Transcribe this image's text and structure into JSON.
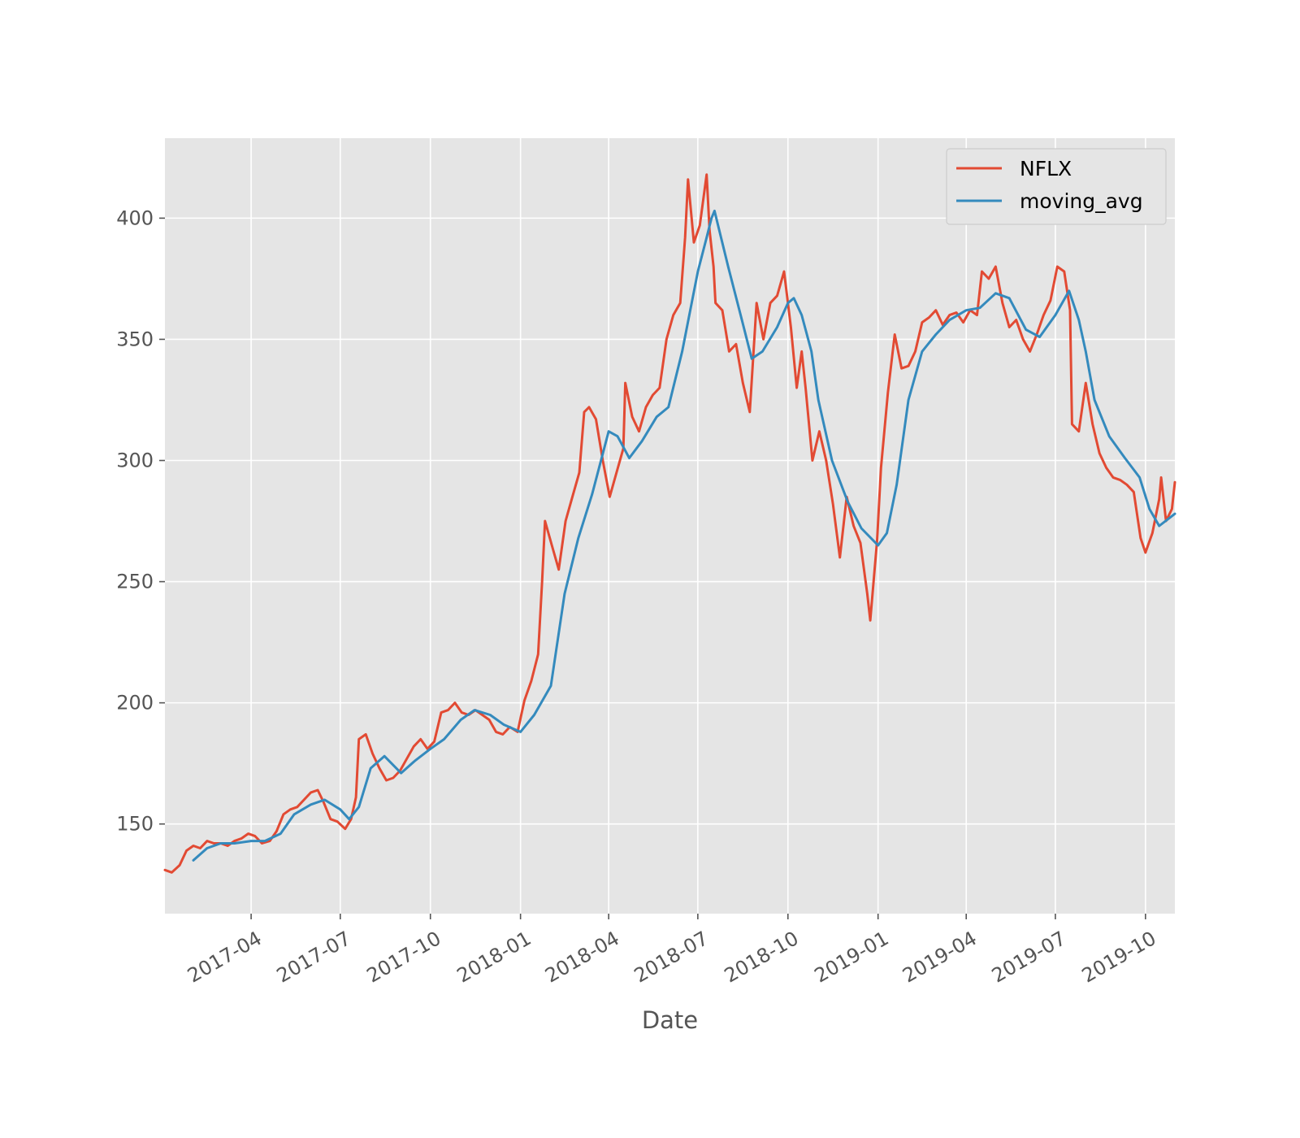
{
  "chart_data": {
    "type": "line",
    "title": "",
    "xlabel": "Date",
    "ylabel": "",
    "grid": true,
    "legend_position": "top-right",
    "x_range": [
      "2017-01-03",
      "2019-10-31"
    ],
    "ylim": [
      113,
      433
    ],
    "x_ticks": [
      {
        "date": "2017-04-01",
        "label": "2017-04"
      },
      {
        "date": "2017-07-01",
        "label": "2017-07"
      },
      {
        "date": "2017-10-01",
        "label": "2017-10"
      },
      {
        "date": "2018-01-01",
        "label": "2018-01"
      },
      {
        "date": "2018-04-01",
        "label": "2018-04"
      },
      {
        "date": "2018-07-01",
        "label": "2018-07"
      },
      {
        "date": "2018-10-01",
        "label": "2018-10"
      },
      {
        "date": "2019-01-01",
        "label": "2019-01"
      },
      {
        "date": "2019-04-01",
        "label": "2019-04"
      },
      {
        "date": "2019-07-01",
        "label": "2019-07"
      },
      {
        "date": "2019-10-01",
        "label": "2019-10"
      }
    ],
    "y_ticks": [
      {
        "value": 150,
        "label": "150"
      },
      {
        "value": 200,
        "label": "200"
      },
      {
        "value": 250,
        "label": "250"
      },
      {
        "value": 300,
        "label": "300"
      },
      {
        "value": 350,
        "label": "350"
      },
      {
        "value": 400,
        "label": "400"
      }
    ],
    "series": [
      {
        "name": "NFLX",
        "color": "#E24A33",
        "points": [
          [
            "2017-01-03",
            131
          ],
          [
            "2017-01-10",
            130
          ],
          [
            "2017-01-18",
            133
          ],
          [
            "2017-01-25",
            139
          ],
          [
            "2017-02-01",
            141
          ],
          [
            "2017-02-08",
            140
          ],
          [
            "2017-02-15",
            143
          ],
          [
            "2017-02-22",
            142
          ],
          [
            "2017-03-01",
            142
          ],
          [
            "2017-03-08",
            141
          ],
          [
            "2017-03-15",
            143
          ],
          [
            "2017-03-22",
            144
          ],
          [
            "2017-03-29",
            146
          ],
          [
            "2017-04-05",
            145
          ],
          [
            "2017-04-12",
            142
          ],
          [
            "2017-04-20",
            143
          ],
          [
            "2017-04-27",
            147
          ],
          [
            "2017-05-04",
            154
          ],
          [
            "2017-05-11",
            156
          ],
          [
            "2017-05-18",
            157
          ],
          [
            "2017-05-25",
            160
          ],
          [
            "2017-06-01",
            163
          ],
          [
            "2017-06-08",
            164
          ],
          [
            "2017-06-14",
            159
          ],
          [
            "2017-06-21",
            152
          ],
          [
            "2017-06-28",
            151
          ],
          [
            "2017-07-06",
            148
          ],
          [
            "2017-07-12",
            152
          ],
          [
            "2017-07-17",
            161
          ],
          [
            "2017-07-20",
            185
          ],
          [
            "2017-07-27",
            187
          ],
          [
            "2017-08-03",
            179
          ],
          [
            "2017-08-10",
            173
          ],
          [
            "2017-08-17",
            168
          ],
          [
            "2017-08-24",
            169
          ],
          [
            "2017-08-31",
            172
          ],
          [
            "2017-09-07",
            177
          ],
          [
            "2017-09-14",
            182
          ],
          [
            "2017-09-21",
            185
          ],
          [
            "2017-09-28",
            181
          ],
          [
            "2017-10-05",
            184
          ],
          [
            "2017-10-12",
            196
          ],
          [
            "2017-10-19",
            197
          ],
          [
            "2017-10-26",
            200
          ],
          [
            "2017-11-02",
            196
          ],
          [
            "2017-11-09",
            195
          ],
          [
            "2017-11-16",
            197
          ],
          [
            "2017-11-23",
            195
          ],
          [
            "2017-11-30",
            193
          ],
          [
            "2017-12-07",
            188
          ],
          [
            "2017-12-14",
            187
          ],
          [
            "2017-12-21",
            190
          ],
          [
            "2017-12-29",
            188
          ],
          [
            "2018-01-05",
            201
          ],
          [
            "2018-01-12",
            209
          ],
          [
            "2018-01-19",
            220
          ],
          [
            "2018-01-23",
            250
          ],
          [
            "2018-01-26",
            275
          ],
          [
            "2018-02-02",
            265
          ],
          [
            "2018-02-09",
            255
          ],
          [
            "2018-02-16",
            275
          ],
          [
            "2018-02-23",
            285
          ],
          [
            "2018-03-02",
            295
          ],
          [
            "2018-03-07",
            320
          ],
          [
            "2018-03-12",
            322
          ],
          [
            "2018-03-19",
            317
          ],
          [
            "2018-03-26",
            300
          ],
          [
            "2018-04-02",
            285
          ],
          [
            "2018-04-09",
            295
          ],
          [
            "2018-04-16",
            305
          ],
          [
            "2018-04-18",
            332
          ],
          [
            "2018-04-25",
            318
          ],
          [
            "2018-05-02",
            312
          ],
          [
            "2018-05-09",
            322
          ],
          [
            "2018-05-16",
            327
          ],
          [
            "2018-05-23",
            330
          ],
          [
            "2018-05-30",
            350
          ],
          [
            "2018-06-06",
            360
          ],
          [
            "2018-06-13",
            365
          ],
          [
            "2018-06-18",
            392
          ],
          [
            "2018-06-21",
            416
          ],
          [
            "2018-06-27",
            390
          ],
          [
            "2018-07-03",
            397
          ],
          [
            "2018-07-10",
            418
          ],
          [
            "2018-07-13",
            395
          ],
          [
            "2018-07-17",
            380
          ],
          [
            "2018-07-19",
            365
          ],
          [
            "2018-07-26",
            362
          ],
          [
            "2018-08-02",
            345
          ],
          [
            "2018-08-09",
            348
          ],
          [
            "2018-08-16",
            332
          ],
          [
            "2018-08-23",
            320
          ],
          [
            "2018-08-30",
            365
          ],
          [
            "2018-09-06",
            350
          ],
          [
            "2018-09-13",
            365
          ],
          [
            "2018-09-20",
            368
          ],
          [
            "2018-09-27",
            378
          ],
          [
            "2018-10-04",
            355
          ],
          [
            "2018-10-10",
            330
          ],
          [
            "2018-10-15",
            345
          ],
          [
            "2018-10-19",
            330
          ],
          [
            "2018-10-26",
            300
          ],
          [
            "2018-11-02",
            312
          ],
          [
            "2018-11-09",
            300
          ],
          [
            "2018-11-16",
            282
          ],
          [
            "2018-11-23",
            260
          ],
          [
            "2018-11-30",
            285
          ],
          [
            "2018-12-07",
            273
          ],
          [
            "2018-12-14",
            266
          ],
          [
            "2018-12-21",
            245
          ],
          [
            "2018-12-24",
            234
          ],
          [
            "2018-12-31",
            267
          ],
          [
            "2019-01-04",
            297
          ],
          [
            "2019-01-11",
            328
          ],
          [
            "2019-01-18",
            352
          ],
          [
            "2019-01-25",
            338
          ],
          [
            "2019-02-01",
            339
          ],
          [
            "2019-02-08",
            345
          ],
          [
            "2019-02-15",
            357
          ],
          [
            "2019-02-22",
            359
          ],
          [
            "2019-03-01",
            362
          ],
          [
            "2019-03-08",
            356
          ],
          [
            "2019-03-15",
            360
          ],
          [
            "2019-03-22",
            361
          ],
          [
            "2019-03-29",
            357
          ],
          [
            "2019-04-05",
            362
          ],
          [
            "2019-04-12",
            360
          ],
          [
            "2019-04-17",
            378
          ],
          [
            "2019-04-24",
            375
          ],
          [
            "2019-05-01",
            380
          ],
          [
            "2019-05-08",
            365
          ],
          [
            "2019-05-15",
            355
          ],
          [
            "2019-05-22",
            358
          ],
          [
            "2019-05-29",
            350
          ],
          [
            "2019-06-05",
            345
          ],
          [
            "2019-06-12",
            352
          ],
          [
            "2019-06-19",
            360
          ],
          [
            "2019-06-26",
            366
          ],
          [
            "2019-07-03",
            380
          ],
          [
            "2019-07-10",
            378
          ],
          [
            "2019-07-16",
            362
          ],
          [
            "2019-07-18",
            315
          ],
          [
            "2019-07-25",
            312
          ],
          [
            "2019-08-01",
            332
          ],
          [
            "2019-08-08",
            315
          ],
          [
            "2019-08-15",
            303
          ],
          [
            "2019-08-22",
            297
          ],
          [
            "2019-08-29",
            293
          ],
          [
            "2019-09-05",
            292
          ],
          [
            "2019-09-12",
            290
          ],
          [
            "2019-09-19",
            287
          ],
          [
            "2019-09-26",
            268
          ],
          [
            "2019-10-01",
            262
          ],
          [
            "2019-10-08",
            270
          ],
          [
            "2019-10-15",
            284
          ],
          [
            "2019-10-17",
            293
          ],
          [
            "2019-10-22",
            275
          ],
          [
            "2019-10-28",
            280
          ],
          [
            "2019-10-31",
            291
          ]
        ]
      },
      {
        "name": "moving_avg",
        "color": "#348ABD",
        "points": [
          [
            "2017-02-01",
            135
          ],
          [
            "2017-02-15",
            140
          ],
          [
            "2017-03-01",
            142
          ],
          [
            "2017-03-15",
            142
          ],
          [
            "2017-04-01",
            143
          ],
          [
            "2017-04-15",
            143
          ],
          [
            "2017-05-01",
            146
          ],
          [
            "2017-05-15",
            154
          ],
          [
            "2017-06-01",
            158
          ],
          [
            "2017-06-15",
            160
          ],
          [
            "2017-07-01",
            156
          ],
          [
            "2017-07-10",
            152
          ],
          [
            "2017-07-20",
            157
          ],
          [
            "2017-08-01",
            173
          ],
          [
            "2017-08-15",
            178
          ],
          [
            "2017-09-01",
            171
          ],
          [
            "2017-09-15",
            176
          ],
          [
            "2017-10-01",
            181
          ],
          [
            "2017-10-15",
            185
          ],
          [
            "2017-11-01",
            193
          ],
          [
            "2017-11-15",
            197
          ],
          [
            "2017-12-01",
            195
          ],
          [
            "2017-12-15",
            191
          ],
          [
            "2018-01-01",
            188
          ],
          [
            "2018-01-15",
            195
          ],
          [
            "2018-02-01",
            207
          ],
          [
            "2018-02-15",
            245
          ],
          [
            "2018-03-01",
            268
          ],
          [
            "2018-03-15",
            286
          ],
          [
            "2018-04-01",
            312
          ],
          [
            "2018-04-10",
            310
          ],
          [
            "2018-04-22",
            301
          ],
          [
            "2018-05-05",
            308
          ],
          [
            "2018-05-20",
            318
          ],
          [
            "2018-06-01",
            322
          ],
          [
            "2018-06-15",
            345
          ],
          [
            "2018-07-01",
            378
          ],
          [
            "2018-07-10",
            392
          ],
          [
            "2018-07-15",
            400
          ],
          [
            "2018-07-18",
            403
          ],
          [
            "2018-08-01",
            380
          ],
          [
            "2018-08-15",
            358
          ],
          [
            "2018-08-25",
            342
          ],
          [
            "2018-09-05",
            345
          ],
          [
            "2018-09-20",
            355
          ],
          [
            "2018-10-01",
            365
          ],
          [
            "2018-10-07",
            367
          ],
          [
            "2018-10-15",
            360
          ],
          [
            "2018-10-25",
            345
          ],
          [
            "2018-11-01",
            325
          ],
          [
            "2018-11-15",
            300
          ],
          [
            "2018-12-01",
            283
          ],
          [
            "2018-12-15",
            272
          ],
          [
            "2019-01-01",
            265
          ],
          [
            "2019-01-10",
            270
          ],
          [
            "2019-01-20",
            290
          ],
          [
            "2019-02-01",
            325
          ],
          [
            "2019-02-15",
            345
          ],
          [
            "2019-03-01",
            352
          ],
          [
            "2019-03-15",
            358
          ],
          [
            "2019-04-01",
            362
          ],
          [
            "2019-04-15",
            363
          ],
          [
            "2019-05-01",
            369
          ],
          [
            "2019-05-15",
            367
          ],
          [
            "2019-06-01",
            354
          ],
          [
            "2019-06-15",
            351
          ],
          [
            "2019-07-01",
            360
          ],
          [
            "2019-07-15",
            370
          ],
          [
            "2019-07-25",
            358
          ],
          [
            "2019-08-01",
            345
          ],
          [
            "2019-08-10",
            325
          ],
          [
            "2019-08-25",
            310
          ],
          [
            "2019-09-10",
            301
          ],
          [
            "2019-09-25",
            293
          ],
          [
            "2019-10-05",
            280
          ],
          [
            "2019-10-15",
            273
          ],
          [
            "2019-10-31",
            278
          ]
        ]
      }
    ]
  }
}
